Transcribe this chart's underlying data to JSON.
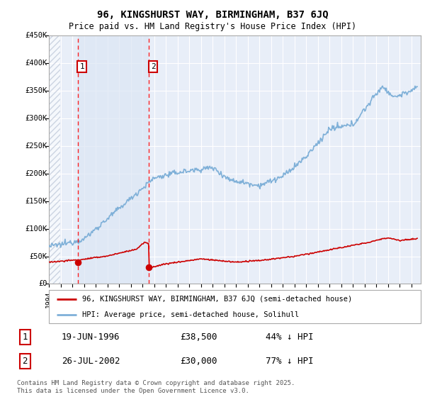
{
  "title_line1": "96, KINGSHURST WAY, BIRMINGHAM, B37 6JQ",
  "title_line2": "Price paid vs. HM Land Registry's House Price Index (HPI)",
  "background_color": "#ffffff",
  "plot_bg_color": "#e8eef8",
  "grid_color": "#ffffff",
  "shade_between_color": "#dce6f5",
  "hatch_region_end": 1995.0,
  "ylim": [
    0,
    450000
  ],
  "yticks": [
    0,
    50000,
    100000,
    150000,
    200000,
    250000,
    300000,
    350000,
    400000,
    450000
  ],
  "ytick_labels": [
    "£0",
    "£50K",
    "£100K",
    "£150K",
    "£200K",
    "£250K",
    "£300K",
    "£350K",
    "£400K",
    "£450K"
  ],
  "sale1_date": 1996.47,
  "sale1_price": 38500,
  "sale2_date": 2002.57,
  "sale2_price": 30000,
  "hpi_line_color": "#7fb0d8",
  "price_line_color": "#cc0000",
  "sale_dot_color": "#cc0000",
  "legend_label_price": "96, KINGSHURST WAY, BIRMINGHAM, B37 6JQ (semi-detached house)",
  "legend_label_hpi": "HPI: Average price, semi-detached house, Solihull",
  "table_row1": [
    "1",
    "19-JUN-1996",
    "£38,500",
    "44% ↓ HPI"
  ],
  "table_row2": [
    "2",
    "26-JUL-2002",
    "£30,000",
    "77% ↓ HPI"
  ],
  "footnote": "Contains HM Land Registry data © Crown copyright and database right 2025.\nThis data is licensed under the Open Government Licence v3.0.",
  "xmin": 1994.0,
  "xmax": 2025.8
}
